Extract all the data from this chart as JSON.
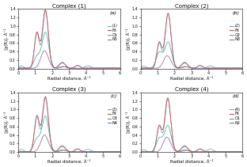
{
  "titles": [
    "Complex (1)",
    "Complex (2)",
    "Complex (3)",
    "Complex (4)"
  ],
  "labels": [
    [
      "(1)",
      "Fit",
      "O1",
      "N5"
    ],
    [
      "(2)",
      "Fit",
      "O2",
      "N8"
    ],
    [
      "(3)",
      "Fit",
      "O3",
      "N4"
    ],
    [
      "(4)",
      "Fit",
      "O1",
      "N2"
    ]
  ],
  "panel_labels": [
    "(a)",
    "(b)",
    "(c)",
    "(d)"
  ],
  "colors_exp": [
    "#7a9cc8",
    "#c05050",
    "#50a888",
    "#8866aa"
  ],
  "xlabel": "Radial distance, Å⁻¹",
  "ylabel": "|χ(R)|, Å⁻¹",
  "xlim": [
    0,
    6
  ],
  "ylim": [
    0,
    1.4
  ],
  "yticks": [
    0,
    0.2,
    0.4,
    0.6,
    0.8,
    1.0,
    1.2,
    1.4
  ],
  "xticks": [
    0,
    1,
    2,
    3,
    4,
    5,
    6
  ],
  "figsize": [
    3.12,
    2.11
  ],
  "dpi": 100
}
